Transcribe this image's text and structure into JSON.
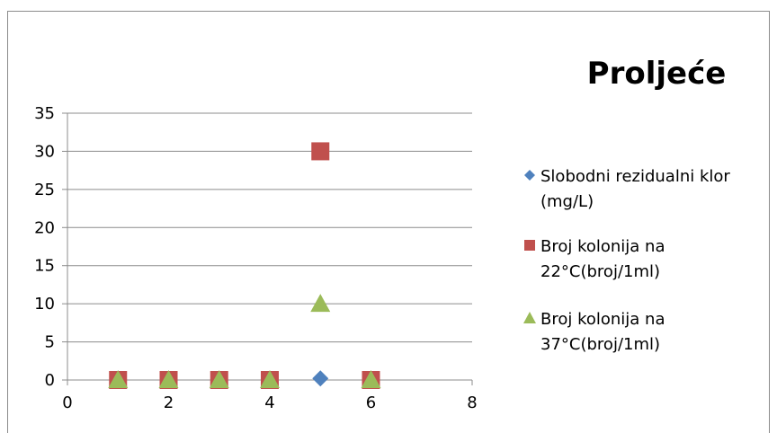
{
  "chart_data": {
    "type": "scatter",
    "title": "Proljeće",
    "xlabel": "",
    "ylabel": "",
    "xlim": [
      0,
      8
    ],
    "ylim": [
      0,
      35
    ],
    "x_ticks": [
      0,
      2,
      4,
      6,
      8
    ],
    "y_ticks": [
      0,
      5,
      10,
      15,
      20,
      25,
      30,
      35
    ],
    "grid": "horizontal",
    "legend_position": "right",
    "series": [
      {
        "name": "Slobodni rezidualni klor (mg/L)",
        "legend_lines": [
          "Slobodni rezidualni klor",
          "(mg/L)"
        ],
        "marker": "diamond",
        "color": "#4f81bd",
        "points": [
          [
            5,
            0.2
          ]
        ]
      },
      {
        "name": "Broj kolonija na 22°C(broj/1ml)",
        "legend_lines": [
          "Broj kolonija na",
          "22°C(broj/1ml)"
        ],
        "marker": "square",
        "color": "#c0504d",
        "points": [
          [
            1,
            0
          ],
          [
            2,
            0
          ],
          [
            3,
            0
          ],
          [
            4,
            0
          ],
          [
            5,
            30
          ],
          [
            6,
            0
          ]
        ]
      },
      {
        "name": "Broj kolonija na 37°C(broj/1ml)",
        "legend_lines": [
          "Broj kolonija na",
          "37°C(broj/1ml)"
        ],
        "marker": "triangle",
        "color": "#9bbb59",
        "points": [
          [
            1,
            0
          ],
          [
            2,
            0
          ],
          [
            3,
            0
          ],
          [
            4,
            0
          ],
          [
            5,
            10
          ],
          [
            6,
            0
          ]
        ]
      }
    ]
  }
}
